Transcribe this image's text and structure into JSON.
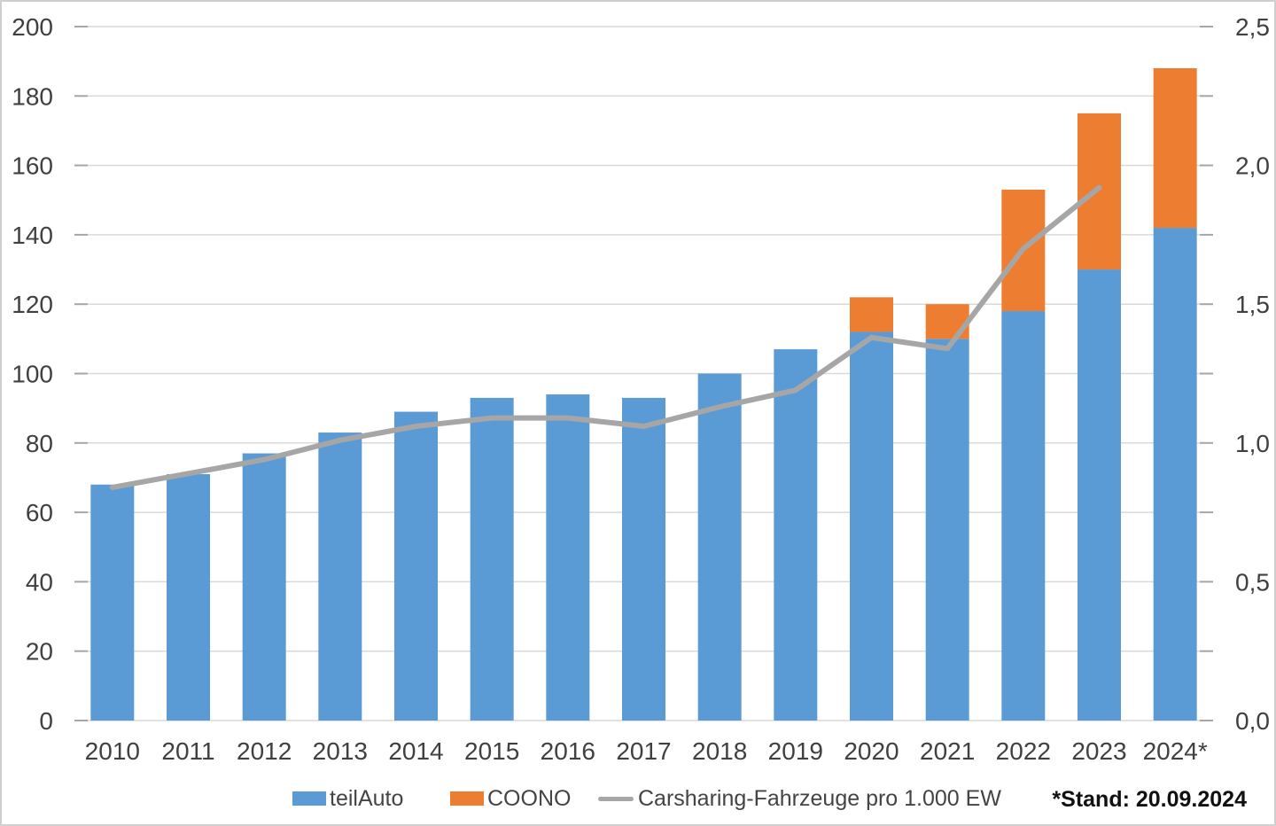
{
  "footnote": "*Stand: 20.09.2024",
  "colors": {
    "grid": "#D9D9D9",
    "tick": "#A6A6A6",
    "axis_text": "#404040",
    "frame": "#CFCFCF"
  },
  "chart_data": {
    "type": "bar",
    "subtype": "stacked-column-with-line-combo",
    "title": "",
    "xlabel": "",
    "ylabel_left": "",
    "ylabel_right": "",
    "grid": true,
    "stacked_bars": true,
    "legend_position": "bottom",
    "categories": [
      "2010",
      "2011",
      "2012",
      "2013",
      "2014",
      "2015",
      "2016",
      "2017",
      "2018",
      "2019",
      "2020",
      "2021",
      "2022",
      "2023",
      "2024*"
    ],
    "series": [
      {
        "name": "teilAuto",
        "type": "bar",
        "axis": "left",
        "color": "#5B9BD5",
        "values": [
          68,
          71,
          77,
          83,
          89,
          93,
          94,
          93,
          100,
          107,
          112,
          110,
          118,
          130,
          142
        ]
      },
      {
        "name": "COONO",
        "type": "bar",
        "axis": "left",
        "color": "#ED7D31",
        "values": [
          0,
          0,
          0,
          0,
          0,
          0,
          0,
          0,
          0,
          0,
          10,
          10,
          35,
          45,
          46
        ]
      },
      {
        "name": "Carsharing-Fahrzeuge pro 1.000 EW",
        "type": "line",
        "axis": "right",
        "color": "#A6A6A6",
        "values": [
          0.84,
          0.89,
          0.94,
          1.01,
          1.06,
          1.09,
          1.09,
          1.06,
          1.13,
          1.19,
          1.38,
          1.34,
          1.7,
          1.92,
          null
        ]
      }
    ],
    "left_axis": {
      "min": 0,
      "max": 200,
      "ticks": [
        {
          "label": "0",
          "value": 0
        },
        {
          "label": "20",
          "value": 20
        },
        {
          "label": "40",
          "value": 40
        },
        {
          "label": "60",
          "value": 60
        },
        {
          "label": "80",
          "value": 80
        },
        {
          "label": "100",
          "value": 100
        },
        {
          "label": "120",
          "value": 120
        },
        {
          "label": "140",
          "value": 140
        },
        {
          "label": "160",
          "value": 160
        },
        {
          "label": "180",
          "value": 180
        },
        {
          "label": "200",
          "value": 200
        }
      ]
    },
    "right_axis": {
      "min": 0,
      "max": 2.5,
      "ticks": [
        {
          "label": "0,0",
          "value": 0
        },
        {
          "label": "0,5",
          "value": 0.5
        },
        {
          "label": "1,0",
          "value": 1.0
        },
        {
          "label": "1,5",
          "value": 1.5
        },
        {
          "label": "2,0",
          "value": 2.0
        },
        {
          "label": "2,5",
          "value": 2.5
        }
      ],
      "minor_tick_values": [
        0,
        0.25,
        0.5,
        0.75,
        1.0,
        1.25,
        1.5,
        1.75,
        2.0,
        2.25,
        2.5
      ]
    }
  }
}
